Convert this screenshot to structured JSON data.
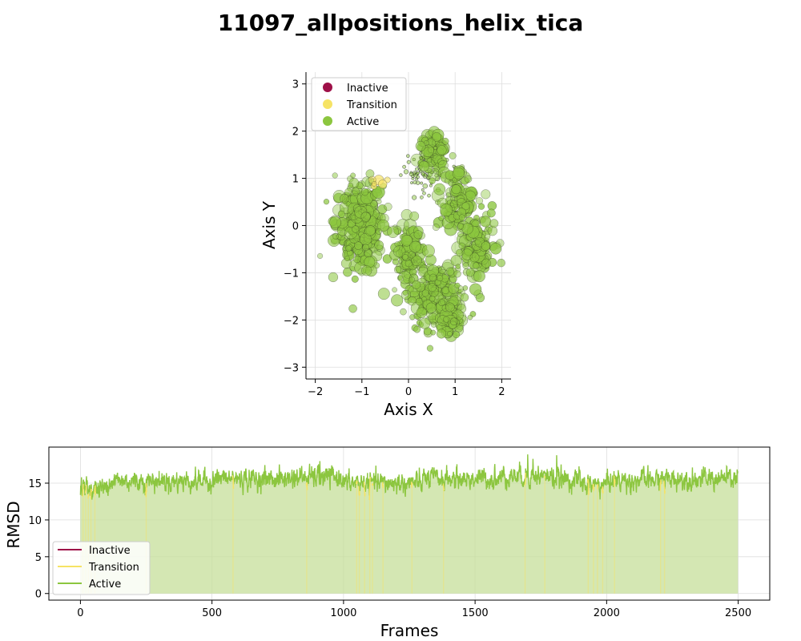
{
  "figure": {
    "title": "11097_allpositions_helix_tica",
    "background": "#ffffff"
  },
  "colors": {
    "inactive": "#9e1048",
    "transition": "#f6e365",
    "active": "#8cc63f",
    "grid": "#dddddd"
  },
  "chart_data": [
    {
      "type": "scatter",
      "xlabel": "Axis X",
      "ylabel": "Axis Y",
      "xlim": [
        -2.2,
        2.2
      ],
      "ylim": [
        -3.25,
        3.25
      ],
      "xticks": [
        -2,
        -1,
        0,
        1,
        2
      ],
      "yticks": [
        -3,
        -2,
        -1,
        0,
        1,
        2,
        3
      ],
      "grid": true,
      "legend_position": "upper-left",
      "legend": [
        "Inactive",
        "Transition",
        "Active"
      ],
      "clusters": [
        {
          "state": "Active",
          "cx": -1.05,
          "cy": 0.05,
          "sx": 0.25,
          "sy": 0.45,
          "n": 320
        },
        {
          "state": "Active",
          "cx": 0.55,
          "cy": 1.6,
          "sx": 0.15,
          "sy": 0.18,
          "n": 90
        },
        {
          "state": "Active",
          "cx": 0.0,
          "cy": -0.6,
          "sx": 0.15,
          "sy": 0.35,
          "n": 110
        },
        {
          "state": "Active",
          "cx": 0.6,
          "cy": -1.5,
          "sx": 0.3,
          "sy": 0.35,
          "n": 200
        },
        {
          "state": "Active",
          "cx": 1.5,
          "cy": -0.5,
          "sx": 0.18,
          "sy": 0.4,
          "n": 120
        },
        {
          "state": "Active",
          "cx": 1.05,
          "cy": 0.5,
          "sx": 0.18,
          "sy": 0.35,
          "n": 120
        },
        {
          "state": "Active",
          "cx": 0.9,
          "cy": -2.0,
          "sx": 0.12,
          "sy": 0.12,
          "n": 50
        },
        {
          "state": "Transition",
          "cx": -0.6,
          "cy": 0.9,
          "sx": 0.1,
          "sy": 0.05,
          "n": 6
        }
      ],
      "trail_clusters": [
        {
          "cx": 0.35,
          "cy": 1.2,
          "sx": 0.25,
          "sy": 0.25,
          "n": 90
        }
      ]
    },
    {
      "type": "line",
      "xlabel": "Frames",
      "ylabel": "RMSD",
      "xlim": [
        -120,
        2620
      ],
      "ylim": [
        -0.9,
        19.9
      ],
      "xticks": [
        0,
        500,
        1000,
        1500,
        2000,
        2500
      ],
      "yticks": [
        0,
        5,
        10,
        15
      ],
      "grid": true,
      "legend_position": "lower-left",
      "legend": [
        "Inactive",
        "Transition",
        "Active"
      ],
      "n_frames": 2500,
      "baseline_segments": [
        {
          "from": 0,
          "to": 100,
          "mean": 14.3
        },
        {
          "from": 100,
          "to": 500,
          "mean": 15.3
        },
        {
          "from": 500,
          "to": 800,
          "mean": 15.6
        },
        {
          "from": 800,
          "to": 1000,
          "mean": 15.8
        },
        {
          "from": 1000,
          "to": 1300,
          "mean": 15.0
        },
        {
          "from": 1300,
          "to": 1600,
          "mean": 15.6
        },
        {
          "from": 1600,
          "to": 1800,
          "mean": 16.0
        },
        {
          "from": 1800,
          "to": 1900,
          "mean": 15.5
        },
        {
          "from": 1900,
          "to": 2000,
          "mean": 14.8
        },
        {
          "from": 2000,
          "to": 2200,
          "mean": 15.4
        },
        {
          "from": 2200,
          "to": 2500,
          "mean": 15.6
        }
      ],
      "noise": 0.6,
      "transition_frames": [
        10,
        20,
        30,
        40,
        55,
        250,
        580,
        860,
        1050,
        1060,
        1080,
        1100,
        1110,
        1150,
        1260,
        1380,
        1690,
        1765,
        1930,
        1950,
        1965,
        1985,
        2030,
        2205,
        2220
      ],
      "peaks": [
        [
          1700,
          18.9
        ],
        [
          1720,
          18.3
        ],
        [
          1810,
          18.8
        ],
        [
          910,
          18.0
        ],
        [
          1575,
          17.6
        ]
      ]
    }
  ]
}
